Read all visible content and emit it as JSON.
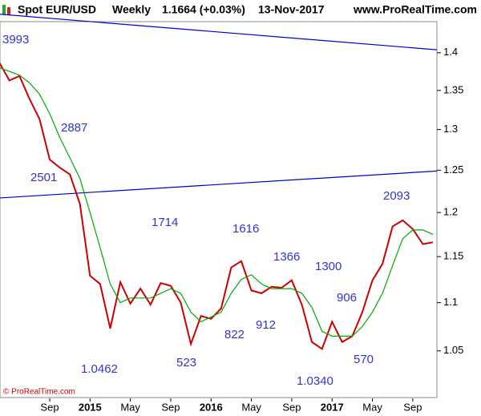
{
  "chart_data": {
    "type": "line",
    "title": "Spot EUR/USD",
    "period": "Weekly",
    "last": "1.1664 (+0.03%)",
    "date": "13-Nov-2017",
    "source": "www.ProRealTime.com",
    "footer": "© ProRealTime.com",
    "log": true,
    "categories": [
      null,
      null,
      null,
      null,
      null,
      "Sep",
      null,
      null,
      null,
      "2015",
      null,
      null,
      null,
      "May",
      null,
      null,
      null,
      "Sep",
      null,
      null,
      null,
      "2016",
      null,
      null,
      null,
      "May",
      null,
      null,
      null,
      "Sep",
      null,
      null,
      null,
      "2017",
      null,
      null,
      null,
      "May",
      null,
      null,
      null,
      "Sep",
      null,
      null
    ],
    "series": [
      {
        "name": "EUR/USD",
        "color": "#cc0000",
        "values": [
          1.387,
          1.363,
          1.369,
          1.339,
          1.313,
          1.263,
          1.253,
          1.245,
          1.21,
          1.129,
          1.12,
          1.073,
          1.122,
          1.099,
          1.115,
          1.098,
          1.121,
          1.118,
          1.1,
          1.057,
          1.086,
          1.083,
          1.094,
          1.138,
          1.145,
          1.113,
          1.11,
          1.117,
          1.116,
          1.124,
          1.098,
          1.059,
          1.052,
          1.08,
          1.059,
          1.065,
          1.09,
          1.124,
          1.142,
          1.184,
          1.191,
          1.181,
          1.164,
          1.166
        ]
      },
      {
        "name": "MA",
        "color": "#00aa00",
        "values": [
          1.38,
          1.375,
          1.37,
          1.36,
          1.345,
          1.32,
          1.29,
          1.265,
          1.24,
          1.2,
          1.16,
          1.12,
          1.1,
          1.105,
          1.105,
          1.105,
          1.11,
          1.115,
          1.11,
          1.09,
          1.08,
          1.085,
          1.09,
          1.11,
          1.125,
          1.13,
          1.12,
          1.115,
          1.115,
          1.115,
          1.11,
          1.095,
          1.07,
          1.065,
          1.065,
          1.065,
          1.075,
          1.09,
          1.11,
          1.14,
          1.17,
          1.18,
          1.18,
          1.175
        ]
      }
    ],
    "trendlines": [
      {
        "color": "#0000cc",
        "start": 1.453,
        "end": 1.404
      },
      {
        "color": "#0000cc",
        "start": 1.217,
        "end": 1.249
      }
    ],
    "annotations": [
      "3993",
      "2887",
      "2501",
      "1714",
      "1616",
      "1366",
      "1300",
      "906",
      "570",
      "2093",
      "1.0462",
      "523",
      "822",
      "912",
      "1.0340"
    ],
    "ylim": [
      1.003,
      1.464
    ],
    "yticks": [
      1.05,
      1.1,
      1.15,
      1.2,
      1.25,
      1.3,
      1.35,
      1.4
    ]
  }
}
